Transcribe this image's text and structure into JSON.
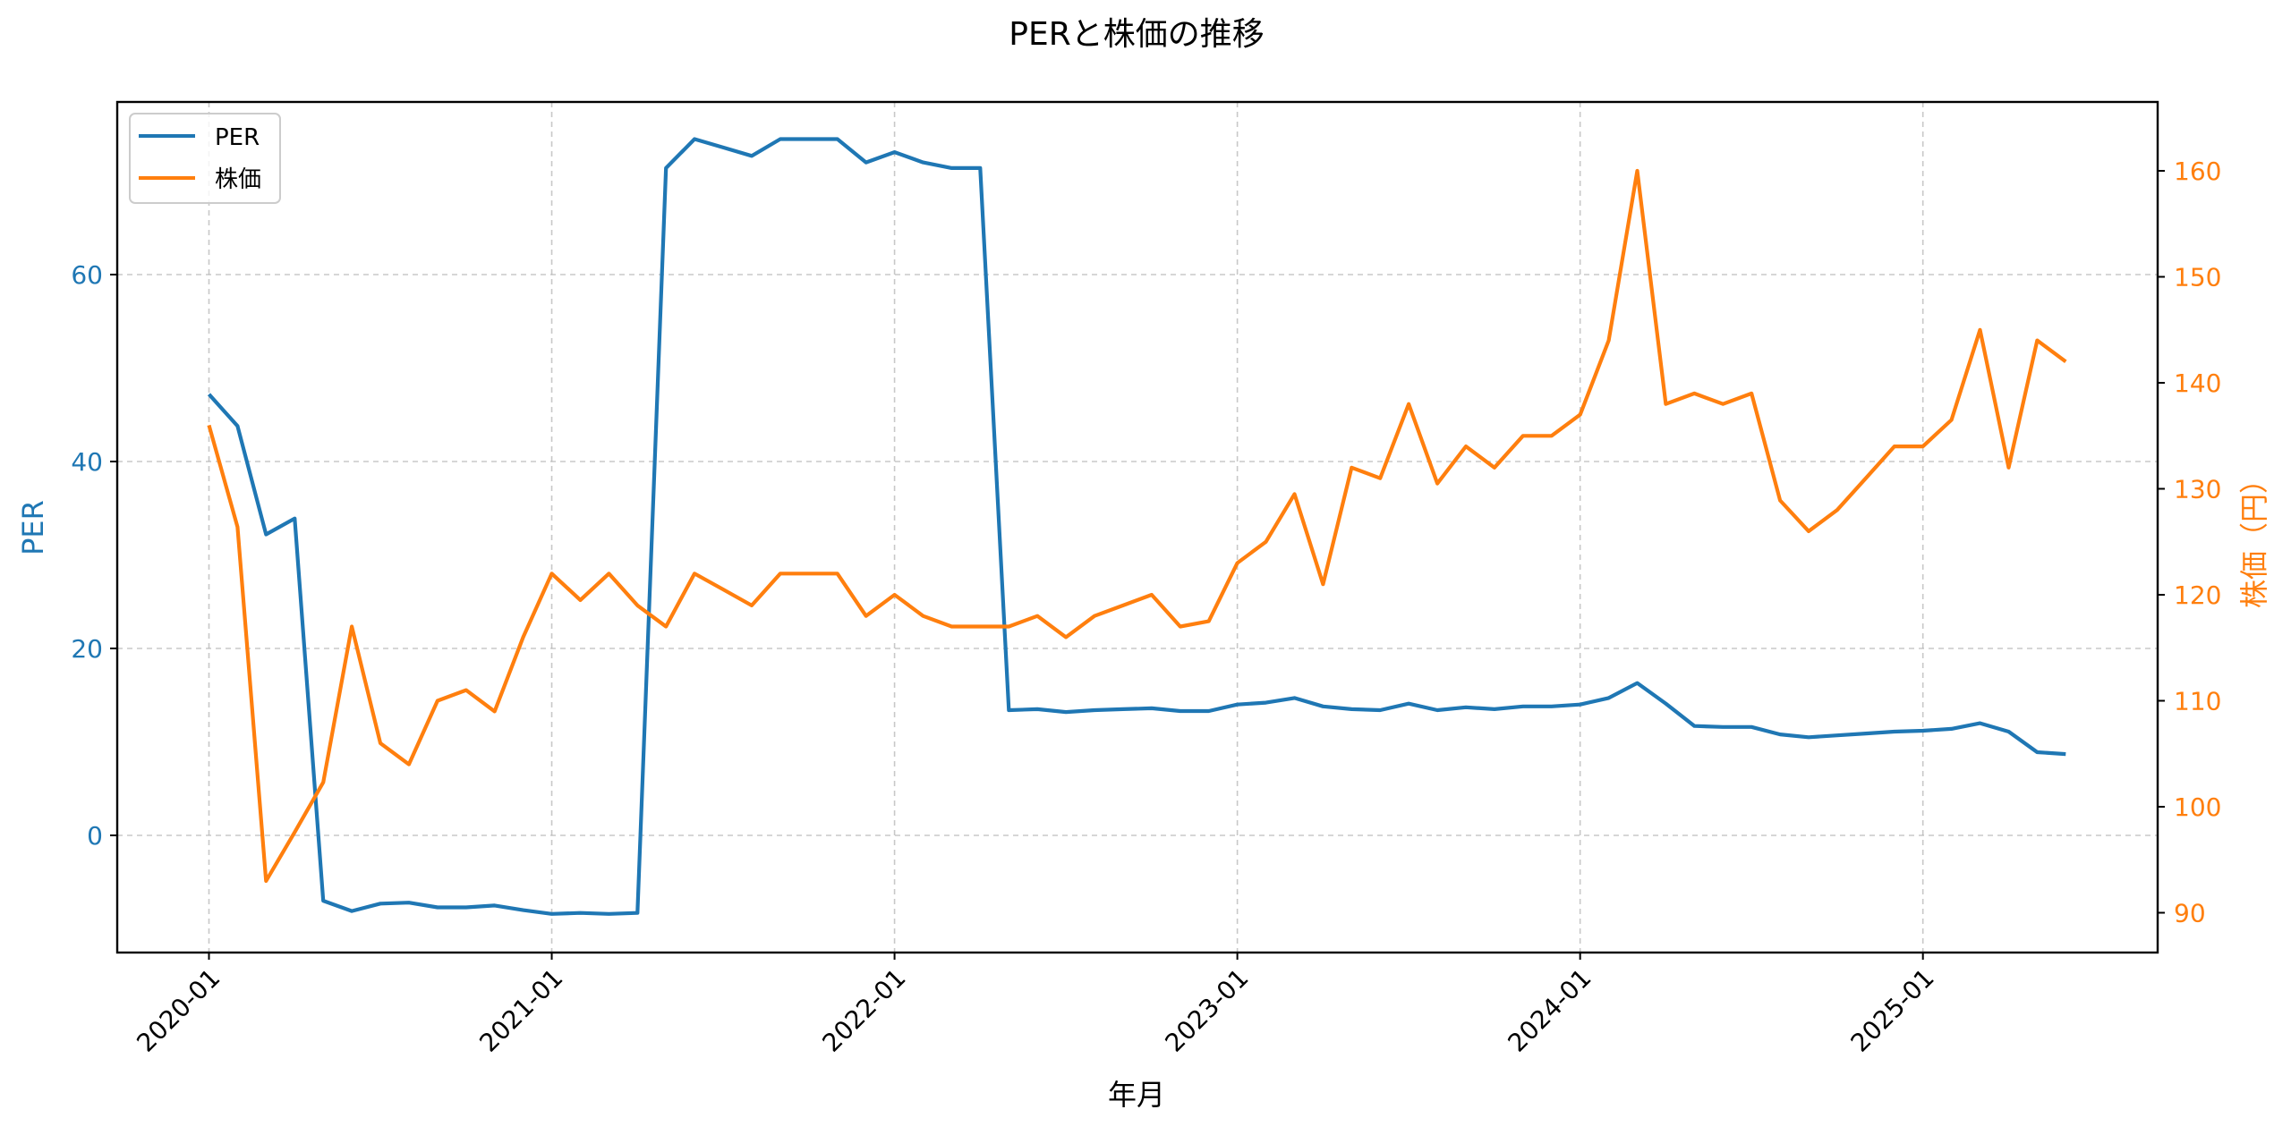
{
  "chart_data": {
    "type": "line",
    "title": "PERと株価の推移",
    "xlabel": "年月",
    "ylabel_left": "PER",
    "ylabel_right": "株価（円）",
    "x_ticks": [
      "2020-01",
      "2021-01",
      "2022-01",
      "2023-01",
      "2024-01",
      "2025-01"
    ],
    "y_left_ticks": [
      0,
      20,
      40,
      60
    ],
    "y_right_ticks": [
      90,
      100,
      110,
      120,
      130,
      140,
      150,
      160
    ],
    "ylim_left": [
      -12.5,
      79
    ],
    "ylim_right": [
      86,
      166
    ],
    "grid": true,
    "legend_position": "upper left",
    "x": [
      "2020-01",
      "2020-02",
      "2020-03",
      "2020-04",
      "2020-05",
      "2020-06",
      "2020-07",
      "2020-08",
      "2020-09",
      "2020-10",
      "2020-11",
      "2020-12",
      "2021-01",
      "2021-02",
      "2021-03",
      "2021-04",
      "2021-05",
      "2021-06",
      "2021-07",
      "2021-08",
      "2021-09",
      "2021-10",
      "2021-11",
      "2021-12",
      "2022-01",
      "2022-02",
      "2022-03",
      "2022-04",
      "2022-05",
      "2022-06",
      "2022-07",
      "2022-08",
      "2022-09",
      "2022-10",
      "2022-11",
      "2022-12",
      "2023-01",
      "2023-02",
      "2023-03",
      "2023-04",
      "2023-05",
      "2023-06",
      "2023-07",
      "2023-08",
      "2023-09",
      "2023-10",
      "2023-11",
      "2023-12",
      "2024-01",
      "2024-02",
      "2024-03",
      "2024-04",
      "2024-05",
      "2024-06",
      "2024-07",
      "2024-08",
      "2024-09",
      "2024-10",
      "2024-11",
      "2024-12",
      "2025-01",
      "2025-02",
      "2025-03",
      "2025-04",
      "2025-05",
      "2025-06"
    ],
    "series": [
      {
        "name": "PER",
        "axis": "left",
        "color": "#1f77b4",
        "values": [
          47.2,
          43.8,
          32.2,
          33.9,
          -7.0,
          -8.1,
          -7.3,
          -7.2,
          -7.7,
          -7.7,
          -7.5,
          -8.0,
          -8.4,
          -8.3,
          -8.4,
          -8.3,
          71.4,
          74.5,
          73.6,
          72.7,
          74.5,
          74.5,
          74.5,
          72.0,
          73.1,
          72.0,
          71.4,
          71.4,
          13.4,
          13.5,
          13.2,
          13.4,
          13.5,
          13.6,
          13.3,
          13.3,
          14.0,
          14.2,
          14.7,
          13.8,
          13.5,
          13.4,
          14.1,
          13.4,
          13.7,
          13.5,
          13.8,
          13.8,
          14.0,
          14.7,
          16.3,
          14.1,
          11.7,
          11.6,
          11.6,
          10.8,
          10.5,
          10.7,
          10.9,
          11.1,
          11.2,
          11.4,
          12.0,
          11.1,
          8.9,
          8.7
        ]
      },
      {
        "name": "株価",
        "axis": "right",
        "color": "#ff7f0e",
        "values": [
          136,
          126.4,
          93,
          97.6,
          102.3,
          117,
          106,
          104,
          110,
          111,
          109,
          116,
          122,
          119.5,
          122,
          119,
          117,
          122,
          120.5,
          119,
          122,
          122,
          122,
          118,
          120,
          118,
          117,
          117,
          117,
          118,
          116,
          118,
          119,
          120,
          117,
          117.5,
          123,
          125,
          129.5,
          121,
          132,
          131,
          138,
          130.5,
          134,
          132,
          135,
          135,
          137,
          144,
          160,
          138,
          139,
          138,
          139,
          128.9,
          126,
          128,
          131,
          134,
          134,
          136.5,
          145,
          132,
          144,
          142
        ]
      }
    ]
  },
  "legend": {
    "items": [
      {
        "label": "PER",
        "color": "#1f77b4"
      },
      {
        "label": "株価",
        "color": "#ff7f0e"
      }
    ]
  }
}
